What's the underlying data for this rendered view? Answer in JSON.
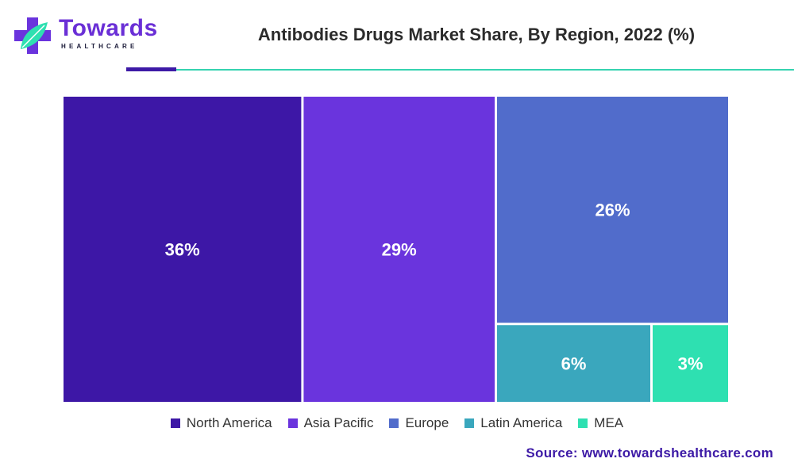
{
  "brand": {
    "name": "Towards",
    "tagline": "HEALTHCARE"
  },
  "chart_data": {
    "type": "treemap",
    "title": "Antibodies Drugs Market Share, By Region, 2022 (%)",
    "unit": "%",
    "categories": [
      "North America",
      "Asia Pacific",
      "Europe",
      "Latin America",
      "MEA"
    ],
    "values": [
      36,
      29,
      26,
      6,
      3
    ],
    "labels": [
      "36%",
      "29%",
      "26%",
      "6%",
      "3%"
    ],
    "colors": [
      "#3d17a6",
      "#6a34dd",
      "#516ccb",
      "#3aa7bd",
      "#2ee0b1"
    ],
    "legend_position": "bottom"
  },
  "source": "Source: www.towardshealthcare.com"
}
